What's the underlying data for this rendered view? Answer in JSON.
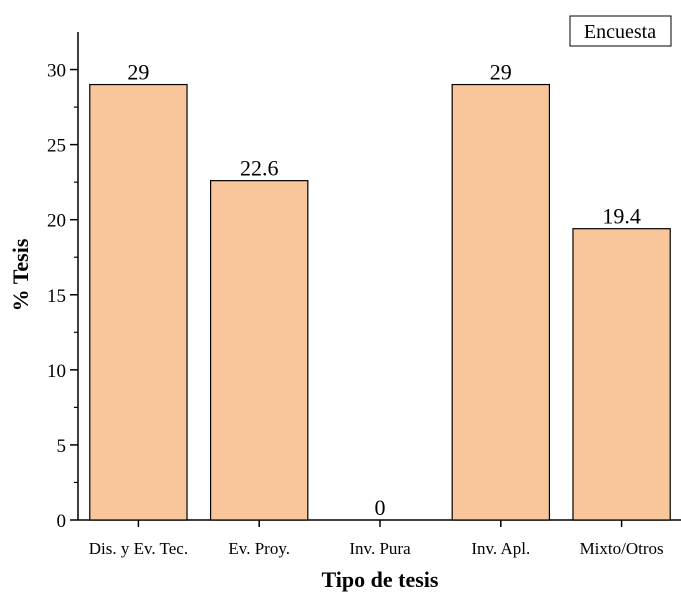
{
  "chart_data": {
    "type": "bar",
    "categories": [
      "Dis. y Ev. Tec.",
      "Ev. Proy.",
      "Inv. Pura",
      "Inv. Apl.",
      "Mixto/Otros"
    ],
    "values": [
      29,
      22.6,
      0,
      29,
      19.4
    ],
    "value_labels": [
      "29",
      "22.6",
      "0",
      "29",
      "19.4"
    ],
    "xlabel": "Tipo de tesis",
    "ylabel": "% Tesis",
    "ylim": [
      0,
      32.5
    ],
    "yticks": [
      0,
      5,
      10,
      15,
      20,
      25,
      30
    ],
    "legend": {
      "label": "Encuesta",
      "position": "top-right"
    },
    "grid": false,
    "colors": {
      "bar_fill": "#F9C69B",
      "bar_stroke": "#000000",
      "axis": "#000000"
    }
  }
}
